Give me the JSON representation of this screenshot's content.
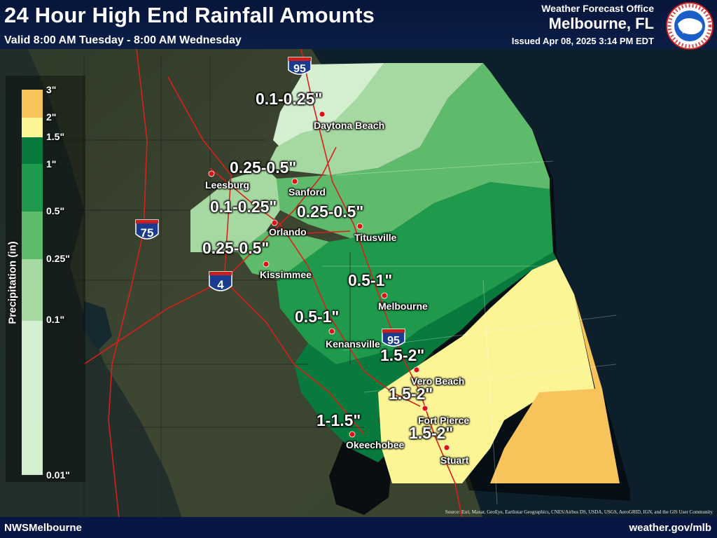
{
  "header": {
    "title": "24 Hour High End Rainfall Amounts",
    "subtitle": "Valid 8:00 AM Tuesday - 8:00 AM Wednesday",
    "office_line1": "Weather Forecast Office",
    "office_line2": "Melbourne, FL",
    "issued": "Issued Apr 08, 2025 3:14 PM EDT",
    "logo_icon": "nws-logo-icon"
  },
  "legend": {
    "title": "Precipitation (in)",
    "labels": [
      "3\"",
      "2\"",
      "1.5\"",
      "1\"",
      "0.5\"",
      "0.25\"",
      "0.1\"",
      "0.01\""
    ],
    "colors": {
      "over_2": "#f7c45c",
      "1_5_to_2": "#fbf596",
      "1_to_1_5": "#087a3e",
      "0_5_to_1": "#1f9a4c",
      "0_25_to_0_5": "#5fbb6c",
      "0_1_to_0_25": "#a6d8a1",
      "0_01_to_0_1": "#d4eed0"
    }
  },
  "amounts": [
    "0.1-0.25\"",
    "0.25-0.5\"",
    "0.1-0.25\"",
    "0.25-0.5\"",
    "0.25-0.5\"",
    "0.5-1\"",
    "0.5-1\"",
    "1.5-2\"",
    "1.5-2\"",
    "1-1.5\"",
    "1.5-2\""
  ],
  "cities": [
    "Daytona Beach",
    "Leesburg",
    "Sanford",
    "Orlando",
    "Titusville",
    "Kissimmee",
    "Melbourne",
    "Kenansville",
    "Vero Beach",
    "Fort Pierce",
    "Okeechobee",
    "Stuart"
  ],
  "highways": {
    "i95": "95",
    "i75": "75",
    "i4": "4"
  },
  "footer": {
    "left": "NWSMelbourne",
    "right": "weather.gov/mlb",
    "credits": "Source: Esri, Maxar, GeoEye, Earthstar Geographics, CNES/Airbus DS, USDA, USGS, AeroGRID, IGN, and the GIS User Community"
  }
}
